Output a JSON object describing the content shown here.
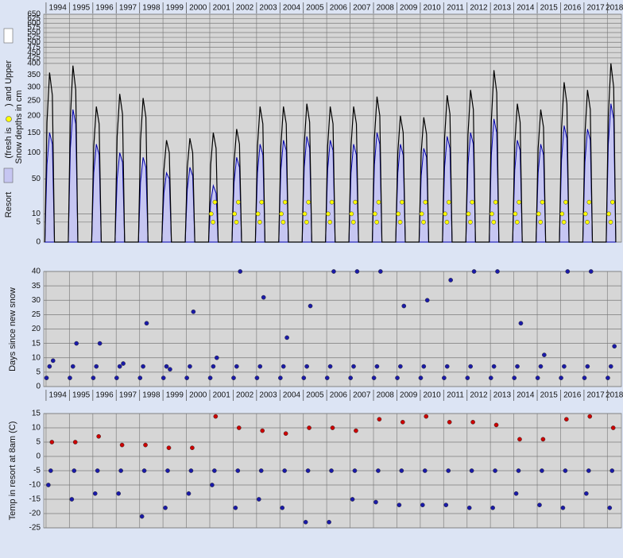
{
  "chart_data": [
    {
      "type": "line",
      "yscale": "sqrt",
      "y_label": [
        "Resort",
        "(fresh is",
        ")  and Upper",
        "Snow depths in cm"
      ],
      "xlim": [
        1993.9,
        2018.6
      ],
      "xticks": [
        1994,
        1995,
        1996,
        1997,
        1998,
        1999,
        2000,
        2001,
        2002,
        2003,
        2004,
        2005,
        2006,
        2007,
        2008,
        2009,
        2010,
        2011,
        2012,
        2013,
        2014,
        2015,
        2016,
        2017,
        2018
      ],
      "ylim": [
        0,
        650
      ],
      "yticks": [
        0,
        5,
        10,
        50,
        100,
        150,
        200,
        250,
        300,
        350,
        400,
        425,
        450,
        475,
        500,
        525,
        550,
        575,
        600,
        625,
        650
      ],
      "grid": true,
      "series": [
        {
          "style": "area",
          "color": "#0000aa",
          "fill": "#c6c6f2",
          "x": [
            1993.95,
            1994.04,
            1994.15,
            1994.27,
            1994.36,
            1994.95,
            1995.04,
            1995.15,
            1995.27,
            1995.36,
            1995.95,
            1996.04,
            1996.15,
            1996.27,
            1996.36,
            1996.95,
            1997.04,
            1997.15,
            1997.27,
            1997.36,
            1997.95,
            1998.04,
            1998.15,
            1998.27,
            1998.36,
            1998.95,
            1999.04,
            1999.15,
            1999.27,
            1999.36,
            1999.95,
            2000.04,
            2000.15,
            2000.27,
            2000.36,
            2000.95,
            2001.04,
            2001.15,
            2001.27,
            2001.36,
            2001.95,
            2002.04,
            2002.15,
            2002.27,
            2002.36,
            2002.95,
            2003.04,
            2003.15,
            2003.27,
            2003.36,
            2003.95,
            2004.04,
            2004.15,
            2004.27,
            2004.36,
            2004.95,
            2005.04,
            2005.15,
            2005.27,
            2005.36,
            2005.95,
            2006.04,
            2006.15,
            2006.27,
            2006.36,
            2006.95,
            2007.04,
            2007.15,
            2007.27,
            2007.36,
            2007.95,
            2008.04,
            2008.15,
            2008.27,
            2008.36,
            2008.95,
            2009.04,
            2009.15,
            2009.27,
            2009.36,
            2009.95,
            2010.04,
            2010.15,
            2010.27,
            2010.36,
            2010.95,
            2011.04,
            2011.15,
            2011.27,
            2011.36,
            2011.95,
            2012.04,
            2012.15,
            2012.27,
            2012.36,
            2012.95,
            2013.04,
            2013.15,
            2013.27,
            2013.36,
            2013.95,
            2014.04,
            2014.15,
            2014.27,
            2014.36,
            2014.95,
            2015.04,
            2015.15,
            2015.27,
            2015.36,
            2015.95,
            2016.04,
            2016.15,
            2016.27,
            2016.36,
            2016.95,
            2017.04,
            2017.15,
            2017.27,
            2017.36,
            2017.95,
            2018.04,
            2018.15,
            2018.27,
            2018.36
          ],
          "values": [
            0,
            75,
            150,
            120,
            0,
            0,
            110,
            220,
            175,
            0,
            0,
            60,
            120,
            95,
            0,
            0,
            50,
            100,
            80,
            0,
            0,
            45,
            90,
            70,
            0,
            0,
            30,
            60,
            50,
            0,
            0,
            35,
            70,
            55,
            0,
            0,
            20,
            40,
            30,
            0,
            0,
            45,
            90,
            70,
            0,
            0,
            60,
            120,
            95,
            0,
            0,
            65,
            130,
            105,
            0,
            0,
            70,
            140,
            110,
            0,
            0,
            65,
            130,
            105,
            0,
            0,
            60,
            120,
            95,
            0,
            0,
            75,
            150,
            120,
            0,
            0,
            60,
            120,
            95,
            0,
            0,
            55,
            110,
            90,
            0,
            0,
            70,
            140,
            110,
            0,
            0,
            75,
            150,
            120,
            0,
            0,
            95,
            190,
            150,
            0,
            0,
            65,
            130,
            105,
            0,
            0,
            60,
            120,
            95,
            0,
            0,
            85,
            170,
            135,
            0,
            0,
            80,
            160,
            130,
            0,
            0,
            120,
            240,
            190,
            0
          ]
        },
        {
          "style": "line",
          "color": "#000000",
          "x": [
            1993.95,
            1994.04,
            1994.15,
            1994.27,
            1994.36,
            1994.95,
            1995.04,
            1995.15,
            1995.27,
            1995.36,
            1995.95,
            1996.04,
            1996.15,
            1996.27,
            1996.36,
            1996.95,
            1997.04,
            1997.15,
            1997.27,
            1997.36,
            1997.95,
            1998.04,
            1998.15,
            1998.27,
            1998.36,
            1998.95,
            1999.04,
            1999.15,
            1999.27,
            1999.36,
            1999.95,
            2000.04,
            2000.15,
            2000.27,
            2000.36,
            2000.95,
            2001.04,
            2001.15,
            2001.27,
            2001.36,
            2001.95,
            2002.04,
            2002.15,
            2002.27,
            2002.36,
            2002.95,
            2003.04,
            2003.15,
            2003.27,
            2003.36,
            2003.95,
            2004.04,
            2004.15,
            2004.27,
            2004.36,
            2004.95,
            2005.04,
            2005.15,
            2005.27,
            2005.36,
            2005.95,
            2006.04,
            2006.15,
            2006.27,
            2006.36,
            2006.95,
            2007.04,
            2007.15,
            2007.27,
            2007.36,
            2007.95,
            2008.04,
            2008.15,
            2008.27,
            2008.36,
            2008.95,
            2009.04,
            2009.15,
            2009.27,
            2009.36,
            2009.95,
            2010.04,
            2010.15,
            2010.27,
            2010.36,
            2010.95,
            2011.04,
            2011.15,
            2011.27,
            2011.36,
            2011.95,
            2012.04,
            2012.15,
            2012.27,
            2012.36,
            2012.95,
            2013.04,
            2013.15,
            2013.27,
            2013.36,
            2013.95,
            2014.04,
            2014.15,
            2014.27,
            2014.36,
            2014.95,
            2015.04,
            2015.15,
            2015.27,
            2015.36,
            2015.95,
            2016.04,
            2016.15,
            2016.27,
            2016.36,
            2016.95,
            2017.04,
            2017.15,
            2017.27,
            2017.36,
            2017.95,
            2018.04,
            2018.15,
            2018.27,
            2018.36
          ],
          "values": [
            0,
            180,
            360,
            270,
            0,
            0,
            195,
            390,
            290,
            0,
            0,
            115,
            230,
            175,
            0,
            0,
            140,
            275,
            205,
            0,
            0,
            130,
            260,
            195,
            0,
            0,
            65,
            130,
            100,
            0,
            0,
            70,
            135,
            100,
            0,
            0,
            75,
            150,
            110,
            0,
            0,
            80,
            160,
            120,
            0,
            0,
            115,
            230,
            175,
            0,
            0,
            115,
            230,
            175,
            0,
            0,
            120,
            240,
            180,
            0,
            0,
            115,
            230,
            175,
            0,
            0,
            115,
            230,
            175,
            0,
            0,
            135,
            265,
            200,
            0,
            0,
            100,
            200,
            150,
            0,
            0,
            100,
            195,
            145,
            0,
            0,
            135,
            270,
            205,
            0,
            0,
            145,
            290,
            220,
            0,
            0,
            185,
            370,
            280,
            0,
            0,
            120,
            240,
            180,
            0,
            0,
            110,
            220,
            165,
            0,
            0,
            160,
            320,
            240,
            0,
            0,
            145,
            290,
            220,
            0,
            0,
            200,
            400,
            300,
            0
          ]
        },
        {
          "style": "points",
          "color": "#ffff00",
          "x": [
            2001.06,
            2001.14,
            2001.22,
            2002.06,
            2002.14,
            2002.22,
            2003.06,
            2003.14,
            2003.22,
            2004.06,
            2004.14,
            2004.22,
            2005.06,
            2005.14,
            2005.22,
            2006.06,
            2006.14,
            2006.22,
            2007.06,
            2007.14,
            2007.22,
            2008.06,
            2008.14,
            2008.22,
            2009.06,
            2009.14,
            2009.22,
            2010.06,
            2010.14,
            2010.22,
            2011.06,
            2011.14,
            2011.22,
            2012.06,
            2012.14,
            2012.22,
            2013.06,
            2013.14,
            2013.22,
            2014.06,
            2014.14,
            2014.22,
            2015.06,
            2015.14,
            2015.22,
            2016.06,
            2016.14,
            2016.22,
            2017.06,
            2017.14,
            2017.22,
            2018.06,
            2018.14,
            2018.22
          ],
          "values": [
            10,
            5,
            20,
            10,
            5,
            20,
            10,
            5,
            20,
            10,
            5,
            20,
            10,
            5,
            20,
            10,
            5,
            20,
            10,
            5,
            20,
            10,
            5,
            20,
            10,
            5,
            20,
            10,
            5,
            20,
            10,
            5,
            20,
            10,
            5,
            20,
            10,
            5,
            20,
            10,
            5,
            20,
            10,
            5,
            20,
            10,
            5,
            20,
            10,
            5,
            20,
            10,
            5,
            20
          ]
        }
      ]
    },
    {
      "type": "scatter",
      "y_label": "Days since new snow",
      "xlim": [
        1993.9,
        2018.6
      ],
      "xticks": [
        1994,
        1995,
        1996,
        1997,
        1998,
        1999,
        2000,
        2001,
        2002,
        2003,
        2004,
        2005,
        2006,
        2007,
        2008,
        2009,
        2010,
        2011,
        2012,
        2013,
        2014,
        2015,
        2016,
        2017,
        2018
      ],
      "ylim": [
        0,
        40
      ],
      "yticks": [
        0,
        5,
        10,
        15,
        20,
        25,
        30,
        35,
        40
      ],
      "grid": true,
      "series": [
        {
          "style": "points",
          "color": "#1a1aa8",
          "x": [
            1994.02,
            1994.15,
            1994.3,
            1995.02,
            1995.15,
            1995.3,
            1996.02,
            1996.15,
            1996.3,
            1997.02,
            1997.15,
            1997.3,
            1998.02,
            1998.15,
            1998.3,
            1999.02,
            1999.15,
            1999.3,
            2000.02,
            2000.15,
            2000.3,
            2001.02,
            2001.15,
            2001.3,
            2002.02,
            2002.15,
            2002.3,
            2003.02,
            2003.15,
            2003.3,
            2004.02,
            2004.15,
            2004.3,
            2005.02,
            2005.15,
            2005.3,
            2006.02,
            2006.15,
            2006.3,
            2007.02,
            2007.15,
            2007.3,
            2008.02,
            2008.15,
            2008.3,
            2009.02,
            2009.15,
            2009.3,
            2010.02,
            2010.15,
            2010.3,
            2011.02,
            2011.15,
            2011.3,
            2012.02,
            2012.15,
            2012.3,
            2013.02,
            2013.15,
            2013.3,
            2014.02,
            2014.15,
            2014.3,
            2015.02,
            2015.15,
            2015.3,
            2016.02,
            2016.15,
            2016.3,
            2017.02,
            2017.15,
            2017.3,
            2018.02,
            2018.15,
            2018.3
          ],
          "values": [
            3,
            7,
            9,
            3,
            7,
            15,
            3,
            7,
            15,
            3,
            7,
            8,
            3,
            7,
            22,
            3,
            7,
            6,
            3,
            7,
            26,
            3,
            7,
            10,
            3,
            7,
            40,
            3,
            7,
            31,
            3,
            7,
            17,
            3,
            7,
            28,
            3,
            7,
            40,
            3,
            7,
            40,
            3,
            7,
            40,
            3,
            7,
            28,
            3,
            7,
            30,
            3,
            7,
            37,
            3,
            7,
            40,
            3,
            7,
            40,
            3,
            7,
            22,
            3,
            7,
            11,
            3,
            7,
            40,
            3,
            7,
            40,
            3,
            7,
            14
          ]
        }
      ]
    },
    {
      "type": "scatter",
      "y_label": "Temp in resort at 8am (C)",
      "xlim": [
        1993.9,
        2018.6
      ],
      "ylim": [
        -25,
        15
      ],
      "yticks": [
        -25,
        -20,
        -15,
        -10,
        -5,
        0,
        5,
        10,
        15
      ],
      "grid": true,
      "series": [
        {
          "style": "points",
          "color": "#cc0000",
          "x": [
            1994.25,
            1995.25,
            1996.25,
            1997.25,
            1998.25,
            1999.25,
            2000.25,
            2001.25,
            2002.25,
            2003.25,
            2004.25,
            2005.25,
            2006.25,
            2007.25,
            2008.25,
            2009.25,
            2010.25,
            2011.25,
            2012.25,
            2013.25,
            2014.25,
            2015.25,
            2016.25,
            2017.25,
            2018.25
          ],
          "values": [
            5,
            5,
            7,
            4,
            4,
            3,
            3,
            14,
            10,
            9,
            8,
            10,
            10,
            9,
            13,
            12,
            14,
            12,
            12,
            11,
            6,
            6,
            13,
            14,
            10
          ]
        },
        {
          "style": "points",
          "color": "#1a1aa8",
          "x": [
            1994.1,
            1994.2,
            1995.1,
            1995.2,
            1996.1,
            1996.2,
            1997.1,
            1997.2,
            1998.1,
            1998.2,
            1999.1,
            1999.2,
            2000.1,
            2000.2,
            2001.1,
            2001.2,
            2002.1,
            2002.2,
            2003.1,
            2003.2,
            2004.1,
            2004.2,
            2005.1,
            2005.2,
            2006.1,
            2006.2,
            2007.1,
            2007.2,
            2008.1,
            2008.2,
            2009.1,
            2009.2,
            2010.1,
            2010.2,
            2011.1,
            2011.2,
            2012.1,
            2012.2,
            2013.1,
            2013.2,
            2014.1,
            2014.2,
            2015.1,
            2015.2,
            2016.1,
            2016.2,
            2017.1,
            2017.2,
            2018.1,
            2018.2
          ],
          "values": [
            -10,
            -5,
            -15,
            -5,
            -13,
            -5,
            -13,
            -5,
            -21,
            -5,
            -18,
            -5,
            -13,
            -5,
            -10,
            -5,
            -18,
            -5,
            -15,
            -5,
            -18,
            -5,
            -23,
            -5,
            -23,
            -5,
            -15,
            -5,
            -16,
            -5,
            -17,
            -5,
            -17,
            -5,
            -17,
            -5,
            -18,
            -5,
            -18,
            -5,
            -13,
            -5,
            -17,
            -5,
            -18,
            -5,
            -13,
            -5,
            -18,
            -5
          ]
        }
      ]
    }
  ]
}
